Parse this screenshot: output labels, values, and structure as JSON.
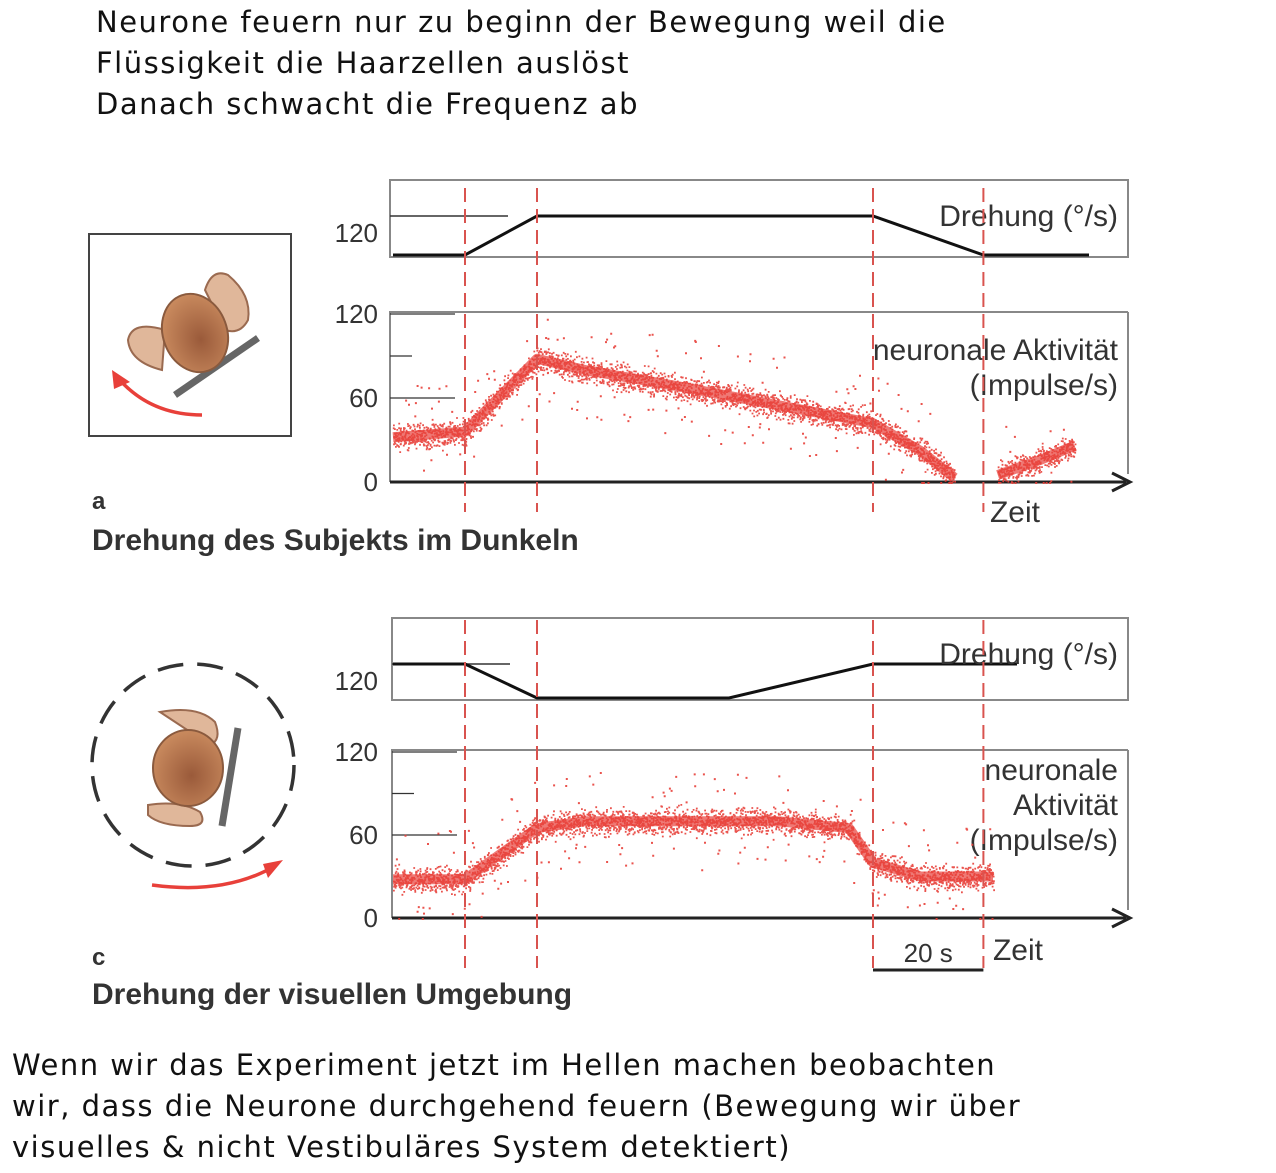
{
  "notes": {
    "top": [
      "Neurone feuern nur zu beginn der Bewegung weil die",
      "Flüssigkeit die Haarzellen auslöst",
      "Danach schwacht die Frequenz ab"
    ],
    "bottom": [
      "Wenn wir das Experiment jetzt im Hellen machen beobachten",
      "wir, dass die Neurone durchgehend feuern (Bewegung wir über",
      "visuelles & nicht Vestibuläres System detektiert)"
    ]
  },
  "colors": {
    "trace": "#e8403a",
    "marker": "#d9534f",
    "axis": "#222222",
    "frame": "#888888"
  },
  "icons": {
    "panel_a": "subject-rotating-in-dark-icon",
    "panel_c": "visual-surround-rotating-icon"
  },
  "chart_data": [
    {
      "type": "line",
      "panel": "a",
      "letter": "a",
      "caption": "Drehung des Subjekts im Dunkeln",
      "rotation": {
        "label": "Drehung (°/s)",
        "tick": "120",
        "x": [
          0,
          15,
          30,
          100,
          123,
          145
        ],
        "y": [
          0,
          0,
          120,
          120,
          0,
          0
        ]
      },
      "activity": {
        "label_lines": [
          "neuronale Aktivität",
          "(Impulse/s)"
        ],
        "yticks": [
          "120",
          "60",
          "0"
        ],
        "ylim": [
          0,
          120
        ],
        "xlabel": "Zeit",
        "segments": [
          {
            "x": [
              0,
              15,
              30,
              40,
              60,
              80,
              100,
              110,
              117
            ],
            "y": [
              32,
              36,
              88,
              80,
              68,
              55,
              42,
              22,
              3
            ]
          },
          {
            "x": [
              126,
              135,
              142
            ],
            "y": [
              5,
              16,
              26
            ]
          }
        ]
      },
      "markers_x": [
        15,
        30,
        100,
        123
      ]
    },
    {
      "type": "line",
      "panel": "c",
      "letter": "c",
      "caption": "Drehung der visuellen Umgebung",
      "rotation": {
        "label": "Drehung (°/s)",
        "tick": "120",
        "x": [
          0,
          15,
          30,
          70,
          100,
          130
        ],
        "y": [
          120,
          120,
          0,
          0,
          120,
          120
        ]
      },
      "activity": {
        "label_lines": [
          "neuronale",
          "Aktivität",
          "(Impulse/s)"
        ],
        "yticks": [
          "120",
          "60",
          "0"
        ],
        "ylim": [
          0,
          120
        ],
        "xlabel": "Zeit",
        "scale_bar": "20 s",
        "segments": [
          {
            "x": [
              0,
              15,
              30,
              40,
              60,
              80,
              95,
              100,
              110,
              120,
              125
            ],
            "y": [
              28,
              28,
              65,
              70,
              70,
              70,
              65,
              40,
              30,
              30,
              30
            ]
          }
        ]
      },
      "markers_x": [
        15,
        30,
        100,
        123
      ]
    }
  ]
}
